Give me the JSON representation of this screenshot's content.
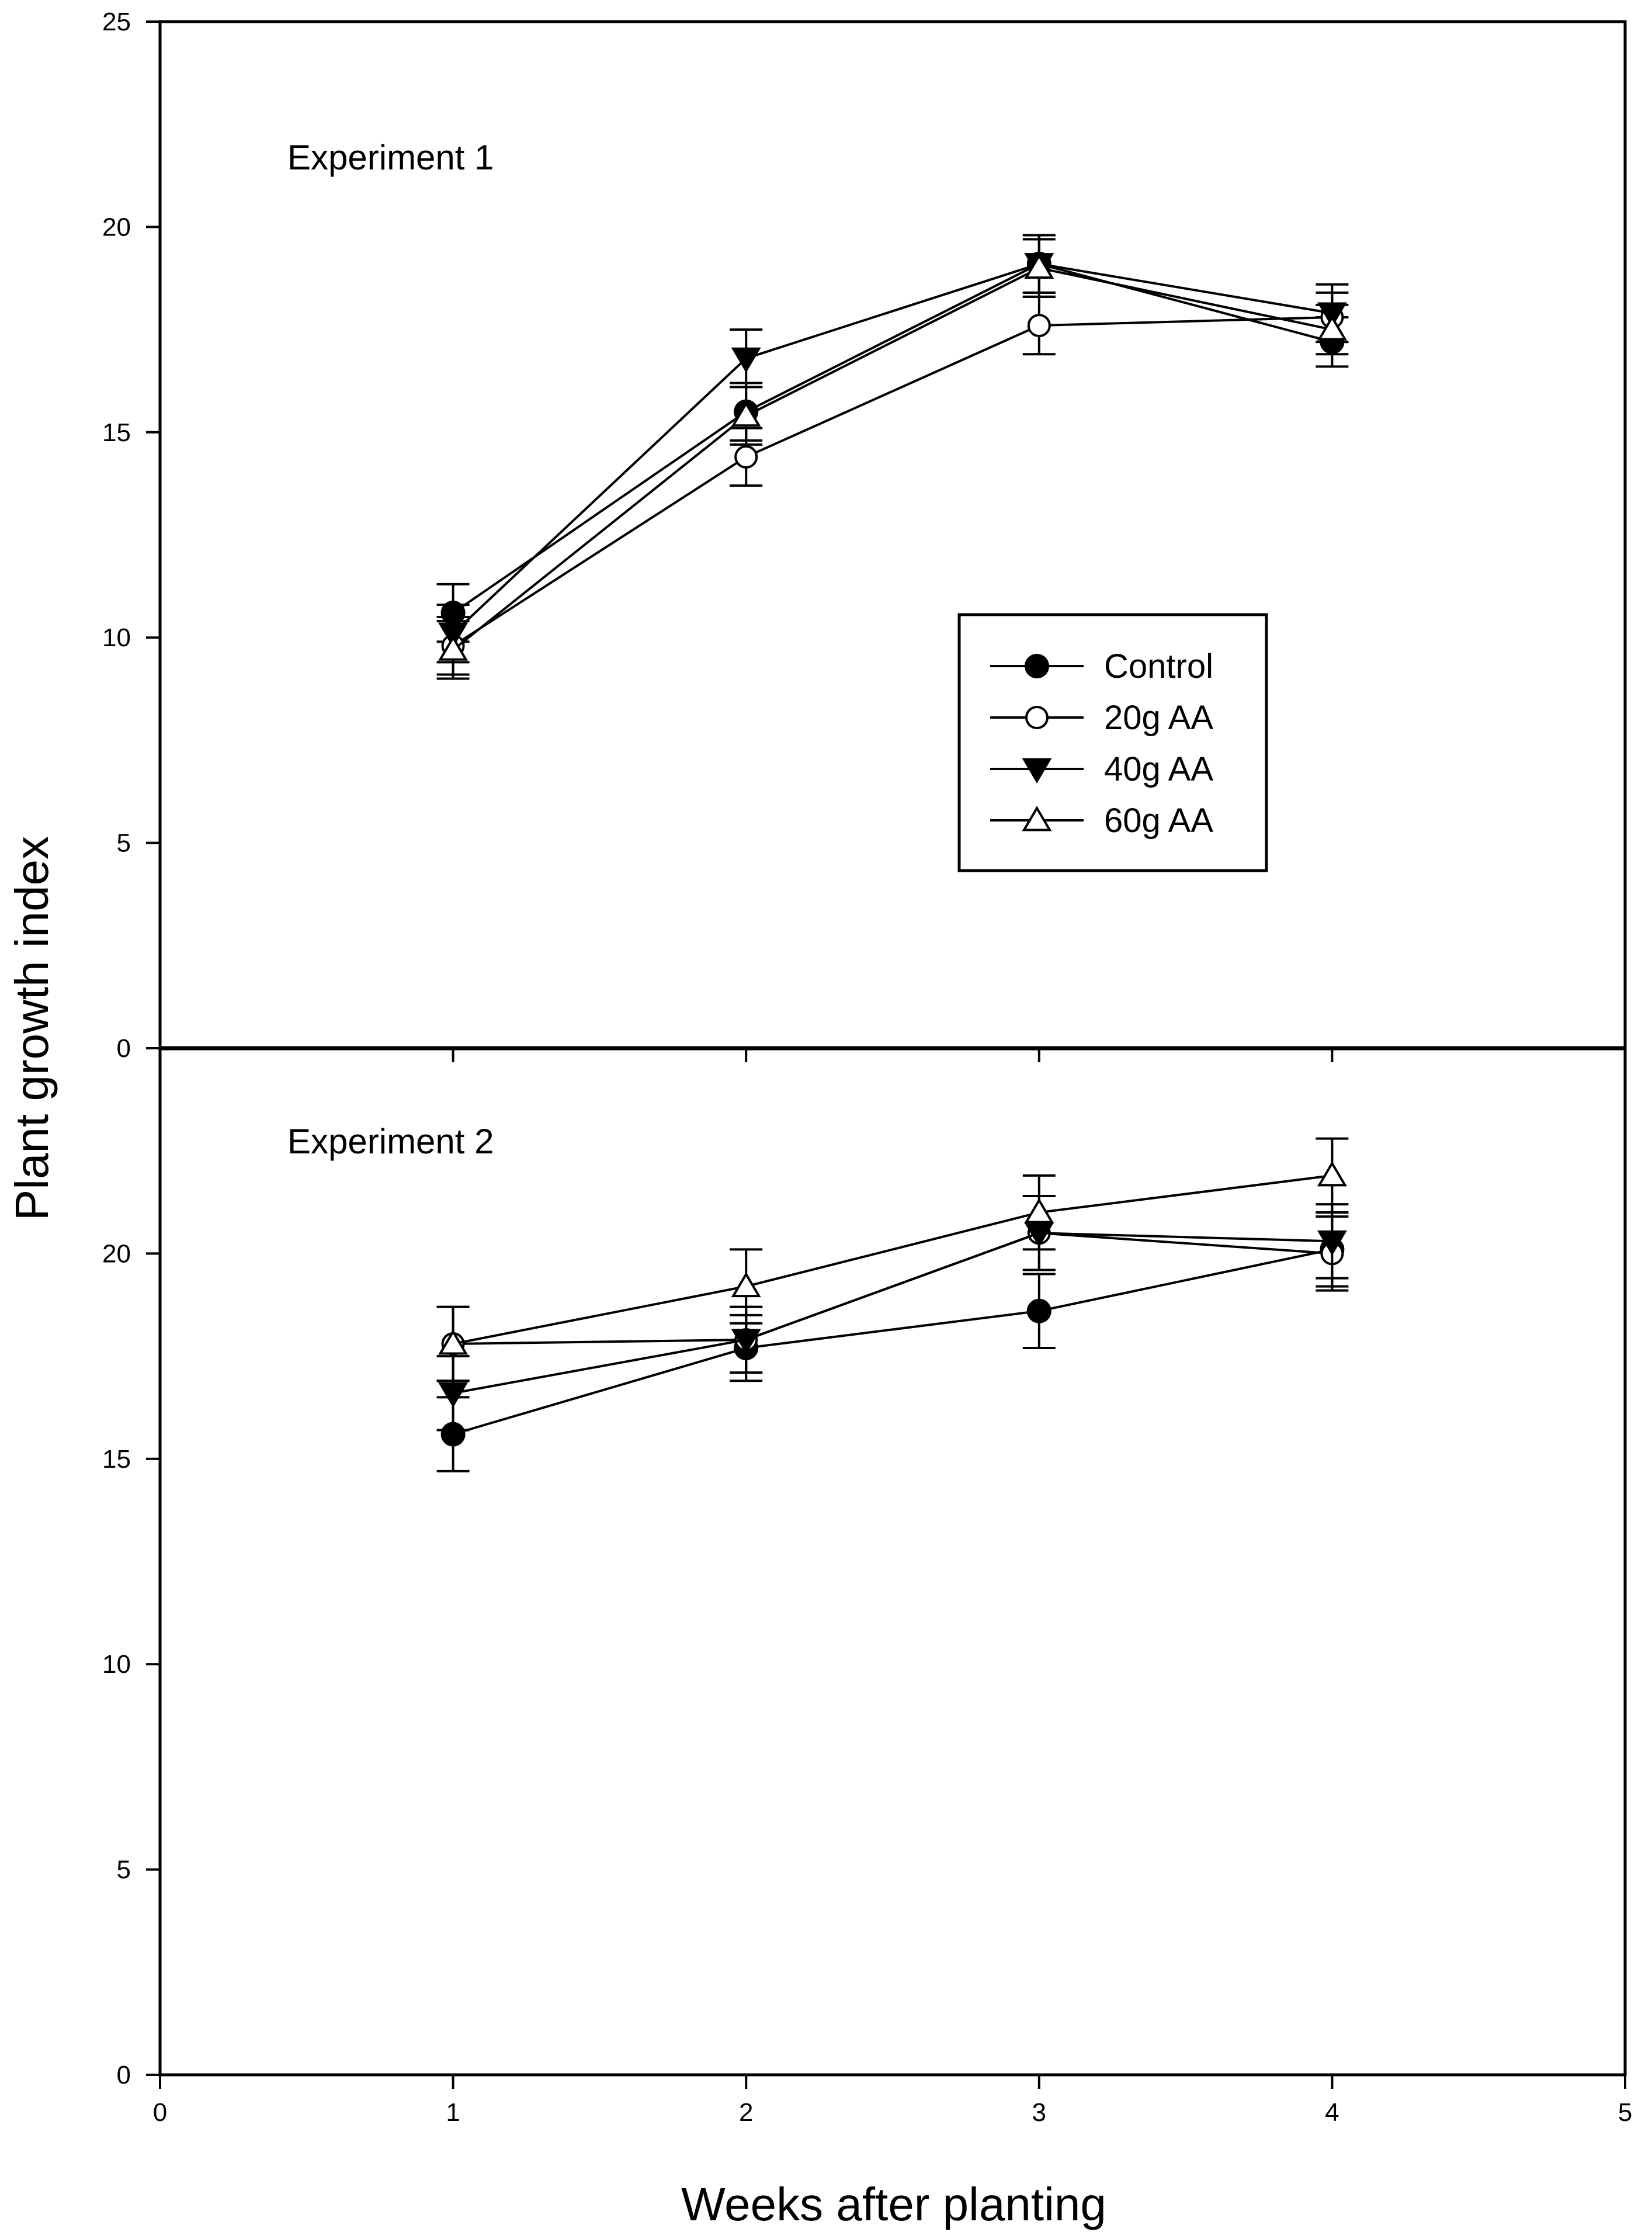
{
  "chart_data": {
    "type": "line",
    "ylabel": "Plant growth index",
    "xlabel": "Weeks after planting",
    "xlim": [
      0,
      5
    ],
    "xticks": [
      0,
      1,
      2,
      3,
      4,
      5
    ],
    "error_bars": true,
    "legend": {
      "placement": "panel-1 right-center",
      "entries": [
        {
          "name": "Control",
          "marker": "filled-circle"
        },
        {
          "name": "20g AA",
          "marker": "open-circle"
        },
        {
          "name": "40g AA",
          "marker": "filled-triangle-down"
        },
        {
          "name": "60g AA",
          "marker": "open-triangle-up"
        }
      ]
    },
    "panels": [
      {
        "label": "Experiment 1",
        "ylim": [
          0,
          25
        ],
        "yticks": [
          0,
          5,
          10,
          15,
          20,
          25
        ],
        "x": [
          1,
          2,
          3,
          4
        ],
        "series": [
          {
            "name": "Control",
            "marker": "filled-circle",
            "values": [
              10.6,
              15.5,
              19.1,
              17.2
            ],
            "errors": [
              0.7,
              0.7,
              0.7,
              0.6
            ]
          },
          {
            "name": "20g AA",
            "marker": "open-circle",
            "values": [
              9.8,
              14.4,
              17.6,
              17.8
            ],
            "errors": [
              0.7,
              0.7,
              0.7,
              0.6
            ]
          },
          {
            "name": "40g AA",
            "marker": "filled-triangle-down",
            "values": [
              10.1,
              16.8,
              19.1,
              17.9
            ],
            "errors": [
              0.7,
              0.7,
              0.7,
              0.7
            ]
          },
          {
            "name": "60g AA",
            "marker": "open-triangle-up",
            "values": [
              9.7,
              15.4,
              19.0,
              17.5
            ],
            "errors": [
              0.7,
              0.7,
              0.7,
              0.6
            ]
          }
        ]
      },
      {
        "label": "Experiment 2",
        "ylim": [
          0,
          25
        ],
        "yticks": [
          0,
          5,
          10,
          15,
          20
        ],
        "x": [
          1,
          2,
          3,
          4
        ],
        "series": [
          {
            "name": "Control",
            "marker": "filled-circle",
            "values": [
              15.6,
              17.7,
              18.6,
              20.1
            ],
            "errors": [
              0.9,
              0.8,
              0.9,
              0.9
            ]
          },
          {
            "name": "20g AA",
            "marker": "open-circle",
            "values": [
              17.8,
              17.9,
              20.5,
              20.0
            ],
            "errors": [
              0.9,
              0.8,
              0.9,
              0.9
            ]
          },
          {
            "name": "40g AA",
            "marker": "filled-triangle-down",
            "values": [
              16.6,
              17.9,
              20.5,
              20.3
            ],
            "errors": [
              0.9,
              0.8,
              0.9,
              0.9
            ]
          },
          {
            "name": "60g AA",
            "marker": "open-triangle-up",
            "values": [
              17.8,
              19.2,
              21.0,
              21.9
            ],
            "errors": [
              0.9,
              0.9,
              0.9,
              0.9
            ]
          }
        ]
      }
    ]
  }
}
